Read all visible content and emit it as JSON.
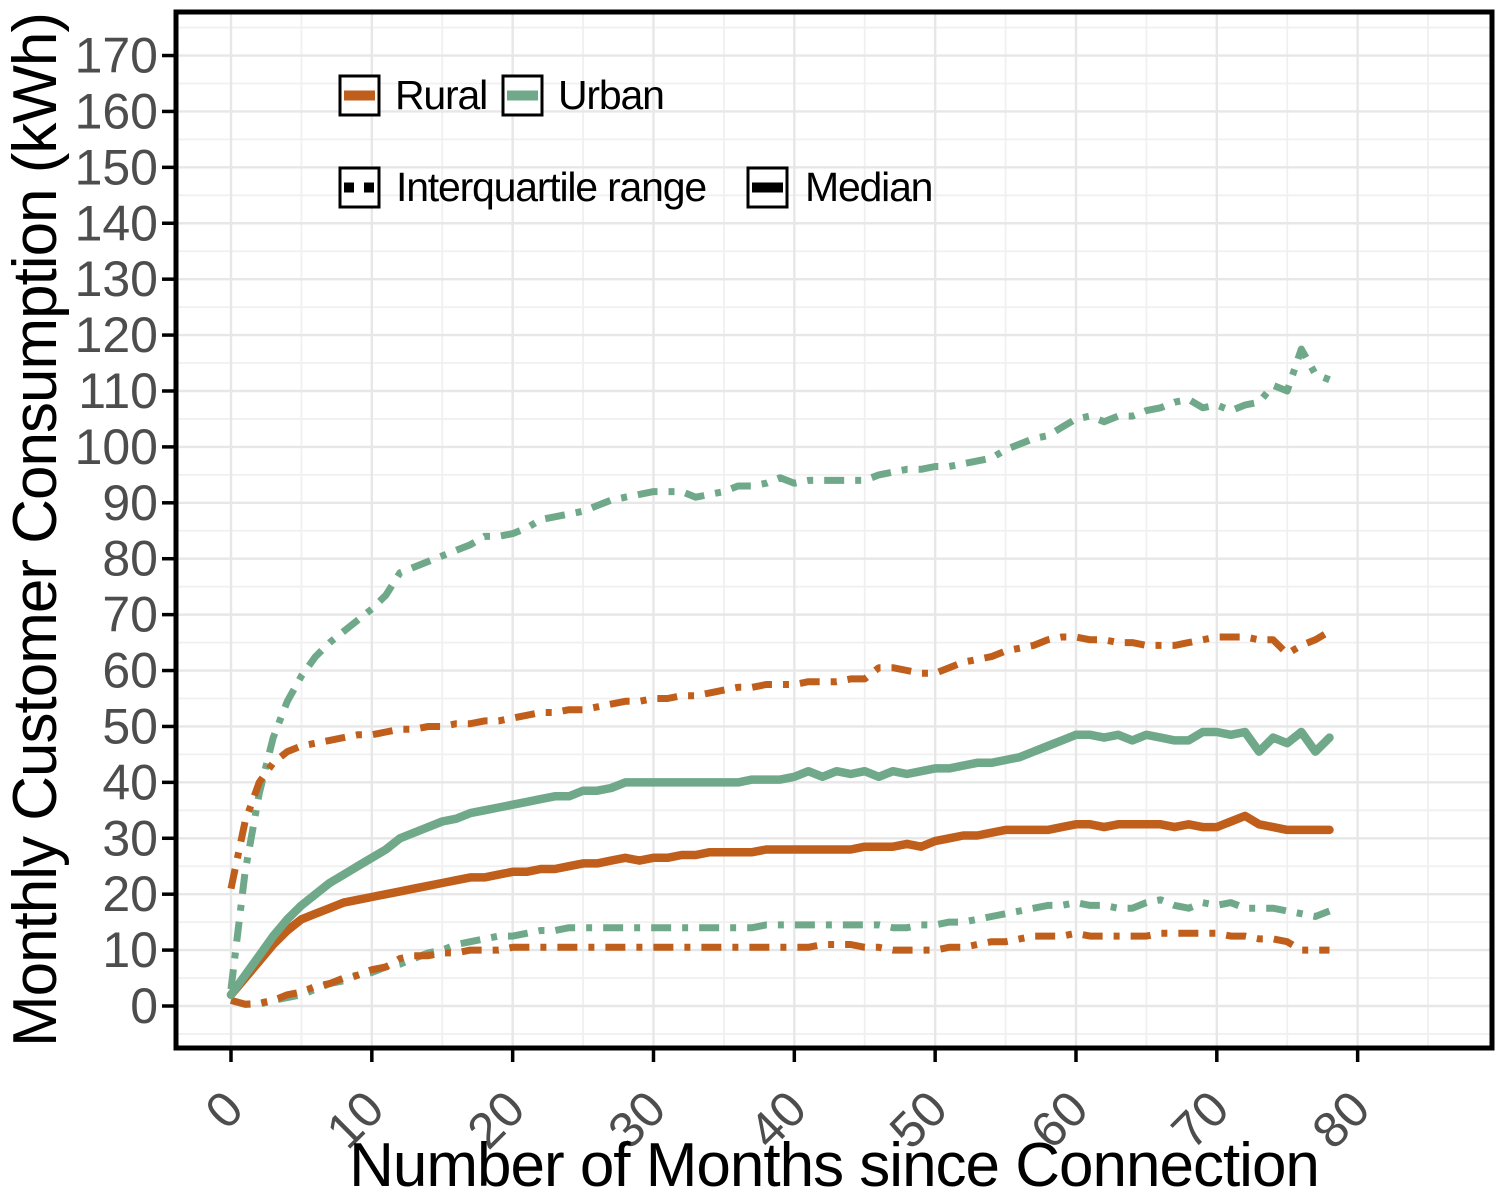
{
  "figure": {
    "y_axis_title": "Monthly Customer Consumption (kWh)",
    "x_axis_title": "Number of Months since Connection",
    "legend": {
      "rural": "Rural",
      "urban": "Urban",
      "iqr": "Interquartile range",
      "median": "Median"
    },
    "colors": {
      "rural": "#C05E1C",
      "urban": "#6FA98A",
      "legend_key": "#000000",
      "tick_label": "#4D4D4D",
      "grid_major": "#E7E7E7",
      "grid_minor": "#F0F0F0"
    }
  },
  "chart_data": {
    "type": "line",
    "title": "",
    "xlabel": "Number of Months since Connection",
    "ylabel": "Monthly Customer Consumption (kWh)",
    "xlim": [
      -4,
      89
    ],
    "ylim": [
      -7,
      178
    ],
    "x_ticks": [
      0,
      10,
      20,
      30,
      40,
      50,
      60,
      70,
      80
    ],
    "y_ticks": [
      0,
      10,
      20,
      30,
      40,
      50,
      60,
      70,
      80,
      90,
      100,
      110,
      120,
      130,
      140,
      150,
      160,
      170
    ],
    "grid": "major-and-minor",
    "legend_position": "top-left-inside",
    "x": [
      0,
      1,
      2,
      3,
      4,
      5,
      6,
      7,
      8,
      9,
      10,
      11,
      12,
      13,
      14,
      15,
      16,
      17,
      18,
      19,
      20,
      21,
      22,
      23,
      24,
      25,
      26,
      27,
      28,
      29,
      30,
      31,
      32,
      33,
      34,
      35,
      36,
      37,
      38,
      39,
      40,
      41,
      42,
      43,
      44,
      45,
      46,
      47,
      48,
      49,
      50,
      51,
      52,
      53,
      54,
      55,
      56,
      57,
      58,
      59,
      60,
      61,
      62,
      63,
      64,
      65,
      66,
      67,
      68,
      69,
      70,
      71,
      72,
      73,
      74,
      75,
      76,
      77,
      78
    ],
    "series": [
      {
        "name": "Urban interquartile range (upper)",
        "group": "Urban",
        "stat": "Interquartile range",
        "line_style": "dashdot",
        "color": "#6FA98A",
        "values": [
          3,
          24,
          38,
          48,
          54.5,
          59,
          62.5,
          65,
          67,
          69,
          71,
          73.5,
          77.5,
          78.5,
          79.5,
          80.5,
          81.5,
          82.5,
          84,
          84,
          84.5,
          85.5,
          87,
          87.5,
          88,
          88.5,
          89.5,
          90.5,
          91,
          91.5,
          92,
          92,
          92,
          91,
          91.5,
          92,
          93,
          93,
          93.5,
          94.5,
          93.5,
          94,
          94,
          94,
          94,
          94,
          95,
          95.5,
          96,
          96,
          96.5,
          96.5,
          97,
          97.5,
          98,
          99.5,
          100.5,
          101.5,
          102,
          103.5,
          105,
          105.5,
          104.5,
          105.5,
          105.5,
          106.5,
          107,
          108,
          108.5,
          107,
          107.5,
          106.5,
          107.5,
          108,
          111,
          110,
          117.5,
          113,
          112
        ]
      },
      {
        "name": "Urban interquartile range (lower)",
        "group": "Urban",
        "stat": "Interquartile range",
        "line_style": "dashdot",
        "color": "#6FA98A",
        "values": [
          1,
          0.3,
          0.3,
          1,
          1.5,
          2,
          3,
          4,
          4.5,
          5.5,
          6,
          7,
          7.5,
          8.5,
          9.5,
          10,
          11,
          11.5,
          12,
          12.5,
          12.5,
          13,
          13.5,
          13.5,
          14,
          14,
          14,
          14,
          14,
          14,
          14,
          14,
          14,
          14,
          14,
          14,
          14,
          14,
          14.5,
          14.5,
          14.5,
          14.5,
          14.5,
          14.5,
          14.5,
          14.5,
          14.5,
          14,
          14,
          14.5,
          14.5,
          15,
          15,
          15.5,
          16,
          16.5,
          17,
          17.5,
          18,
          18,
          18.5,
          18,
          18,
          17.5,
          17.5,
          18.5,
          19,
          18,
          17.5,
          18.5,
          18,
          18.5,
          17.5,
          17.5,
          17.5,
          17,
          16.5,
          16,
          17
        ]
      },
      {
        "name": "Rural interquartile range (upper)",
        "group": "Rural",
        "stat": "Interquartile range",
        "line_style": "dashdot",
        "color": "#C05E1C",
        "values": [
          21,
          33,
          40,
          43.5,
          45.5,
          46.5,
          47,
          47.5,
          48,
          48.5,
          48.5,
          49,
          49.5,
          49.5,
          50,
          50,
          50.5,
          50.5,
          51,
          51,
          51.5,
          52,
          52.5,
          52.5,
          53,
          53,
          53.5,
          54,
          54.5,
          54.5,
          55,
          55,
          55.5,
          55.5,
          56,
          56.5,
          57,
          57,
          57.5,
          57.5,
          57.5,
          58,
          58,
          58,
          58.5,
          58.5,
          60.5,
          60.5,
          60,
          59.5,
          59.5,
          60.5,
          61.5,
          62,
          62.5,
          63.5,
          64,
          64.5,
          65.5,
          66,
          66,
          65.5,
          65.5,
          65,
          65,
          64.5,
          64.5,
          64.5,
          65,
          65.5,
          66,
          66,
          66,
          65.5,
          65.5,
          63,
          64.5,
          65.5,
          67
        ]
      },
      {
        "name": "Rural interquartile range (lower)",
        "group": "Rural",
        "stat": "Interquartile range",
        "line_style": "dashdot",
        "color": "#C05E1C",
        "values": [
          1,
          0.3,
          0.5,
          1,
          2,
          2.5,
          3.5,
          4,
          5,
          5.5,
          6.5,
          7,
          8.5,
          9,
          9,
          9.5,
          9.5,
          10,
          10,
          10,
          10.5,
          10.5,
          10.5,
          10.5,
          10.5,
          10.5,
          10.5,
          10.5,
          10.5,
          10.5,
          10.5,
          10.5,
          10.5,
          10.5,
          10.5,
          10.5,
          10.5,
          10.5,
          10.5,
          10.5,
          10.5,
          10.5,
          11,
          11,
          11,
          10.5,
          10.5,
          10,
          10,
          10,
          10,
          10.5,
          10.5,
          11,
          11.5,
          11.5,
          12,
          12.5,
          12.5,
          12.5,
          13,
          12.5,
          12.5,
          12.5,
          12.5,
          12.5,
          13,
          13,
          13,
          13,
          13,
          12.5,
          12.5,
          12,
          12,
          11.5,
          10,
          10,
          10
        ]
      },
      {
        "name": "Rural median",
        "group": "Rural",
        "stat": "Median",
        "line_style": "solid",
        "color": "#C05E1C",
        "values": [
          2,
          5,
          8,
          11,
          13.5,
          15.5,
          16.5,
          17.5,
          18.5,
          19,
          19.5,
          20,
          20.5,
          21,
          21.5,
          22,
          22.5,
          23,
          23,
          23.5,
          24,
          24,
          24.5,
          24.5,
          25,
          25.5,
          25.5,
          26,
          26.5,
          26,
          26.5,
          26.5,
          27,
          27,
          27.5,
          27.5,
          27.5,
          27.5,
          28,
          28,
          28,
          28,
          28,
          28,
          28,
          28.5,
          28.5,
          28.5,
          29,
          28.5,
          29.5,
          30,
          30.5,
          30.5,
          31,
          31.5,
          31.5,
          31.5,
          31.5,
          32,
          32.5,
          32.5,
          32,
          32.5,
          32.5,
          32.5,
          32.5,
          32,
          32.5,
          32,
          32,
          33,
          34,
          32.5,
          32,
          31.5,
          31.5,
          31.5,
          31.5
        ]
      },
      {
        "name": "Urban median",
        "group": "Urban",
        "stat": "Median",
        "line_style": "solid",
        "color": "#6FA98A",
        "values": [
          2,
          5.5,
          9,
          12.5,
          15.5,
          18,
          20,
          22,
          23.5,
          25,
          26.5,
          28,
          30,
          31,
          32,
          33,
          33.5,
          34.5,
          35,
          35.5,
          36,
          36.5,
          37,
          37.5,
          37.5,
          38.5,
          38.5,
          39,
          40,
          40,
          40,
          40,
          40,
          40,
          40,
          40,
          40,
          40.5,
          40.5,
          40.5,
          41,
          42,
          41,
          42,
          41.5,
          42,
          41,
          42,
          41.5,
          42,
          42.5,
          42.5,
          43,
          43.5,
          43.5,
          44,
          44.5,
          45.5,
          46.5,
          47.5,
          48.5,
          48.5,
          48,
          48.5,
          47.5,
          48.5,
          48,
          47.5,
          47.5,
          49,
          49,
          48.5,
          49,
          45.5,
          48,
          47,
          49,
          45.5,
          48
        ]
      }
    ]
  }
}
